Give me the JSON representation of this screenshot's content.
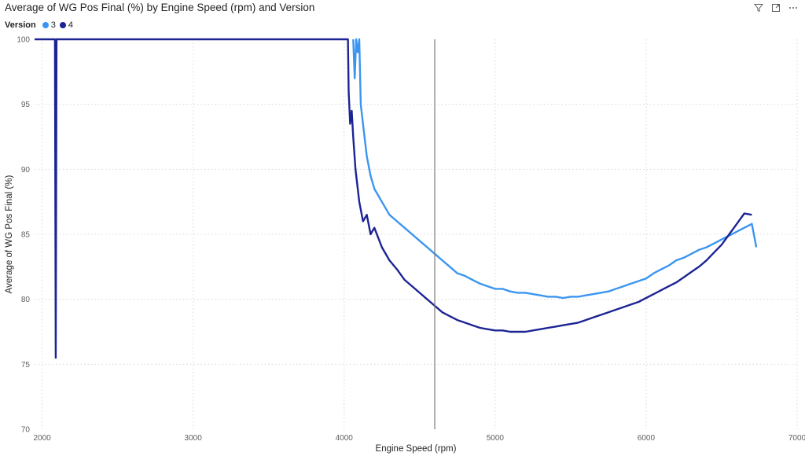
{
  "title": "Average of WG Pos Final (%) by Engine Speed (rpm) and Version",
  "toolbar": {
    "filter_icon": "filter-icon",
    "focus_icon": "focus-mode-icon",
    "more_icon": "more-options-icon"
  },
  "colors": {
    "v3": "#3b95f0",
    "v4": "#1c2494",
    "grid": "#d8d8d8",
    "crosshair": "#7a7a7a"
  },
  "chart_data": {
    "type": "line",
    "title": "Average of WG Pos Final (%) by Engine Speed (rpm) and Version",
    "xlabel": "Engine Speed (rpm)",
    "ylabel": "Average of WG Pos Final (%)",
    "xlim": [
      1950,
      7000
    ],
    "ylim": [
      70,
      100
    ],
    "x_ticks": [
      2000,
      3000,
      4000,
      5000,
      6000,
      7000
    ],
    "y_ticks": [
      70,
      75,
      80,
      85,
      90,
      95,
      100
    ],
    "grid": true,
    "legend": {
      "title": "Version",
      "position": "top-left",
      "entries": [
        "3",
        "4"
      ]
    },
    "crosshair_x": 4600,
    "series": [
      {
        "name": "3",
        "color": "#3b95f0",
        "x": [
          4060,
          4070,
          4080,
          4090,
          4100,
          4110,
          4130,
          4150,
          4175,
          4200,
          4250,
          4300,
          4350,
          4400,
          4450,
          4500,
          4550,
          4600,
          4650,
          4700,
          4750,
          4800,
          4850,
          4900,
          4950,
          5000,
          5050,
          5100,
          5150,
          5200,
          5250,
          5300,
          5350,
          5400,
          5450,
          5500,
          5550,
          5600,
          5650,
          5700,
          5750,
          5800,
          5850,
          5900,
          5950,
          6000,
          6050,
          6100,
          6150,
          6200,
          6250,
          6300,
          6350,
          6400,
          6450,
          6500,
          6550,
          6600,
          6650,
          6700,
          6730
        ],
        "values": [
          100,
          97,
          100,
          99,
          100,
          95,
          93,
          91,
          89.5,
          88.5,
          87.5,
          86.5,
          86,
          85.5,
          85,
          84.5,
          84,
          83.5,
          83,
          82.5,
          82,
          81.8,
          81.5,
          81.2,
          81,
          80.8,
          80.8,
          80.6,
          80.5,
          80.5,
          80.4,
          80.3,
          80.2,
          80.2,
          80.1,
          80.2,
          80.2,
          80.3,
          80.4,
          80.5,
          80.6,
          80.8,
          81,
          81.2,
          81.4,
          81.6,
          82,
          82.3,
          82.6,
          83,
          83.2,
          83.5,
          83.8,
          84,
          84.3,
          84.6,
          84.9,
          85.2,
          85.5,
          85.8,
          84
        ]
      },
      {
        "name": "4",
        "color": "#1c2494",
        "x": [
          1950,
          2085,
          2090,
          2095,
          4025,
          4030,
          4040,
          4050,
          4060,
          4075,
          4100,
          4125,
          4150,
          4175,
          4200,
          4250,
          4300,
          4350,
          4400,
          4450,
          4500,
          4550,
          4600,
          4650,
          4700,
          4750,
          4800,
          4850,
          4900,
          4950,
          5000,
          5050,
          5100,
          5150,
          5200,
          5250,
          5300,
          5350,
          5400,
          5450,
          5500,
          5550,
          5600,
          5650,
          5700,
          5750,
          5800,
          5850,
          5900,
          5950,
          6000,
          6050,
          6100,
          6150,
          6200,
          6250,
          6300,
          6350,
          6400,
          6450,
          6500,
          6550,
          6600,
          6650,
          6700
        ],
        "values": [
          100,
          100,
          75.5,
          100,
          100,
          96,
          93.5,
          94.5,
          92.5,
          90,
          87.5,
          86,
          86.5,
          85,
          85.5,
          84,
          83,
          82.3,
          81.5,
          81,
          80.5,
          80,
          79.5,
          79,
          78.7,
          78.4,
          78.2,
          78,
          77.8,
          77.7,
          77.6,
          77.6,
          77.5,
          77.5,
          77.5,
          77.6,
          77.7,
          77.8,
          77.9,
          78,
          78.1,
          78.2,
          78.4,
          78.6,
          78.8,
          79,
          79.2,
          79.4,
          79.6,
          79.8,
          80.1,
          80.4,
          80.7,
          81,
          81.3,
          81.7,
          82.1,
          82.5,
          83,
          83.6,
          84.2,
          85,
          85.8,
          86.6,
          86.5
        ]
      }
    ]
  },
  "legend": {
    "title": "Version",
    "v3_label": "3",
    "v4_label": "4"
  },
  "axes": {
    "xlabel": "Engine Speed (rpm)",
    "ylabel": "Average of WG Pos Final (%)",
    "x_tick_labels": [
      "2000",
      "3000",
      "4000",
      "5000",
      "6000",
      "7000"
    ],
    "y_tick_labels": [
      "70",
      "75",
      "80",
      "85",
      "90",
      "95",
      "100"
    ]
  }
}
